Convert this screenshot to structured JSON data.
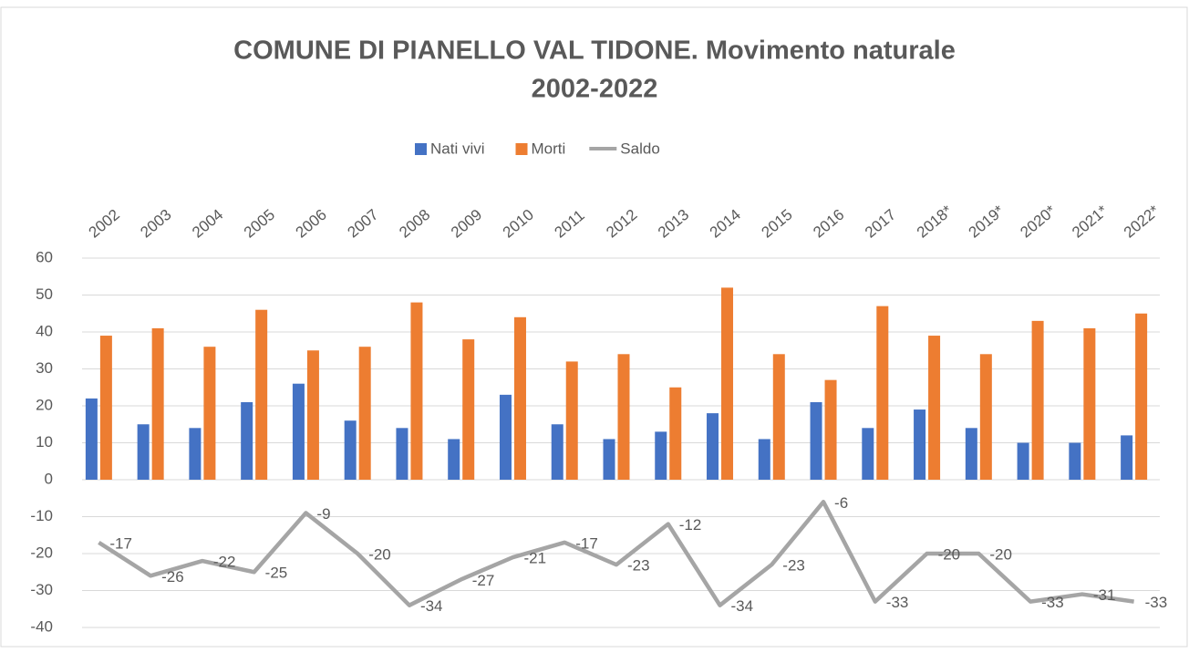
{
  "chart_data": {
    "type": "bar_line",
    "title": [
      "COMUNE DI PIANELLO VAL TIDONE. Movimento naturale",
      "2002-2022"
    ],
    "categories": [
      "2002",
      "2003",
      "2004",
      "2005",
      "2006",
      "2007",
      "2008",
      "2009",
      "2010",
      "2011",
      "2012",
      "2013",
      "2014",
      "2015",
      "2016",
      "2017",
      "2018*",
      "2019*",
      "2020*",
      "2021*",
      "2022*"
    ],
    "series": [
      {
        "name": "Nati vivi",
        "type": "bar",
        "color": "#4472c4",
        "values": [
          22,
          15,
          14,
          21,
          26,
          16,
          14,
          11,
          23,
          15,
          11,
          13,
          18,
          11,
          21,
          14,
          19,
          14,
          10,
          10,
          12
        ]
      },
      {
        "name": "Morti",
        "type": "bar",
        "color": "#ed7d31",
        "values": [
          39,
          41,
          36,
          46,
          35,
          36,
          48,
          38,
          44,
          32,
          34,
          25,
          52,
          34,
          27,
          47,
          39,
          34,
          43,
          41,
          45
        ]
      },
      {
        "name": "Saldo",
        "type": "line",
        "color": "#a5a5a5",
        "data_labels": true,
        "values": [
          -17,
          -26,
          -22,
          -25,
          -9,
          -20,
          -34,
          -27,
          -21,
          -17,
          -23,
          -12,
          -34,
          -23,
          -6,
          -33,
          -20,
          -20,
          -33,
          -31,
          -33
        ]
      }
    ],
    "ylim": [
      -40,
      60
    ],
    "yticks": [
      -40,
      -30,
      -20,
      -10,
      0,
      10,
      20,
      30,
      40,
      50,
      60
    ],
    "grid": true,
    "legend": "top"
  }
}
